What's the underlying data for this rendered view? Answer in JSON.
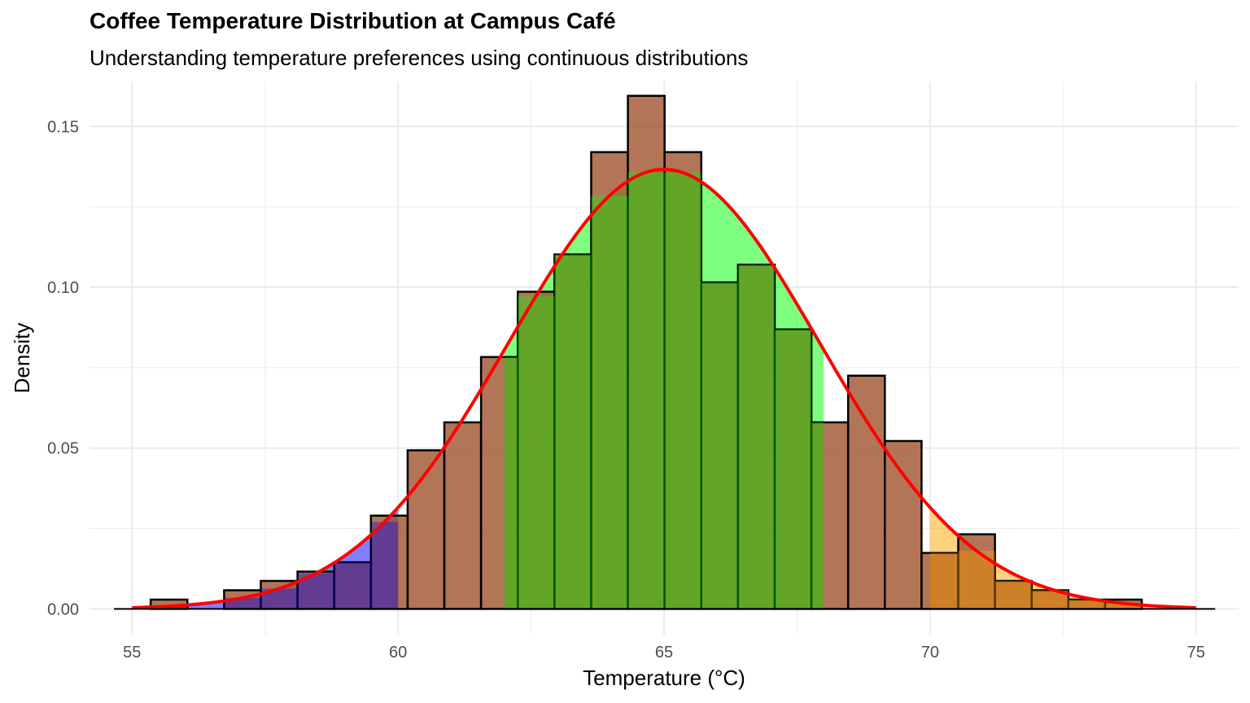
{
  "chart_data": {
    "type": "bar",
    "title": "Coffee Temperature Distribution at Campus Café",
    "subtitle": "Understanding temperature preferences using continuous distributions",
    "xlabel": "Temperature (°C)",
    "ylabel": "Density",
    "xlim": [
      54.2,
      75.8
    ],
    "ylim": [
      -0.008,
      0.164
    ],
    "x_ticks": [
      55,
      60,
      65,
      70,
      75
    ],
    "y_ticks": [
      0.0,
      0.05,
      0.1,
      0.15
    ],
    "y_tick_labels": [
      "0.00",
      "0.05",
      "0.10",
      "0.15"
    ],
    "grid": true,
    "histogram": {
      "bin_edges": [
        54.66,
        55.35,
        56.04,
        56.73,
        57.42,
        58.11,
        58.8,
        59.49,
        60.18,
        60.87,
        61.56,
        62.25,
        62.94,
        63.63,
        64.32,
        65.01,
        65.7,
        66.39,
        67.08,
        67.77,
        68.46,
        69.15,
        69.84,
        70.53,
        71.22,
        71.91,
        72.6,
        73.29,
        73.98,
        74.67,
        75.36
      ],
      "density": [
        0.0,
        0.0029,
        0.0,
        0.0058,
        0.0087,
        0.0116,
        0.0145,
        0.029,
        0.0493,
        0.058,
        0.0783,
        0.0986,
        0.1102,
        0.142,
        0.1595,
        0.142,
        0.1015,
        0.107,
        0.0869,
        0.058,
        0.0725,
        0.0522,
        0.0174,
        0.0232,
        0.0087,
        0.0058,
        0.0029,
        0.0029,
        0.0,
        0.0
      ],
      "fill": "#a0522d",
      "outline": "#000000"
    },
    "curve": {
      "distribution": "normal",
      "mean": 65,
      "sd": 2.92,
      "range": [
        55,
        75
      ],
      "color": "#ff0000"
    },
    "shaded_regions": [
      {
        "from": 55,
        "to": 60,
        "color": "#0000ff"
      },
      {
        "from": 62,
        "to": 68,
        "color": "#00ff00"
      },
      {
        "from": 70,
        "to": 75,
        "color": "#ffa500"
      }
    ]
  }
}
